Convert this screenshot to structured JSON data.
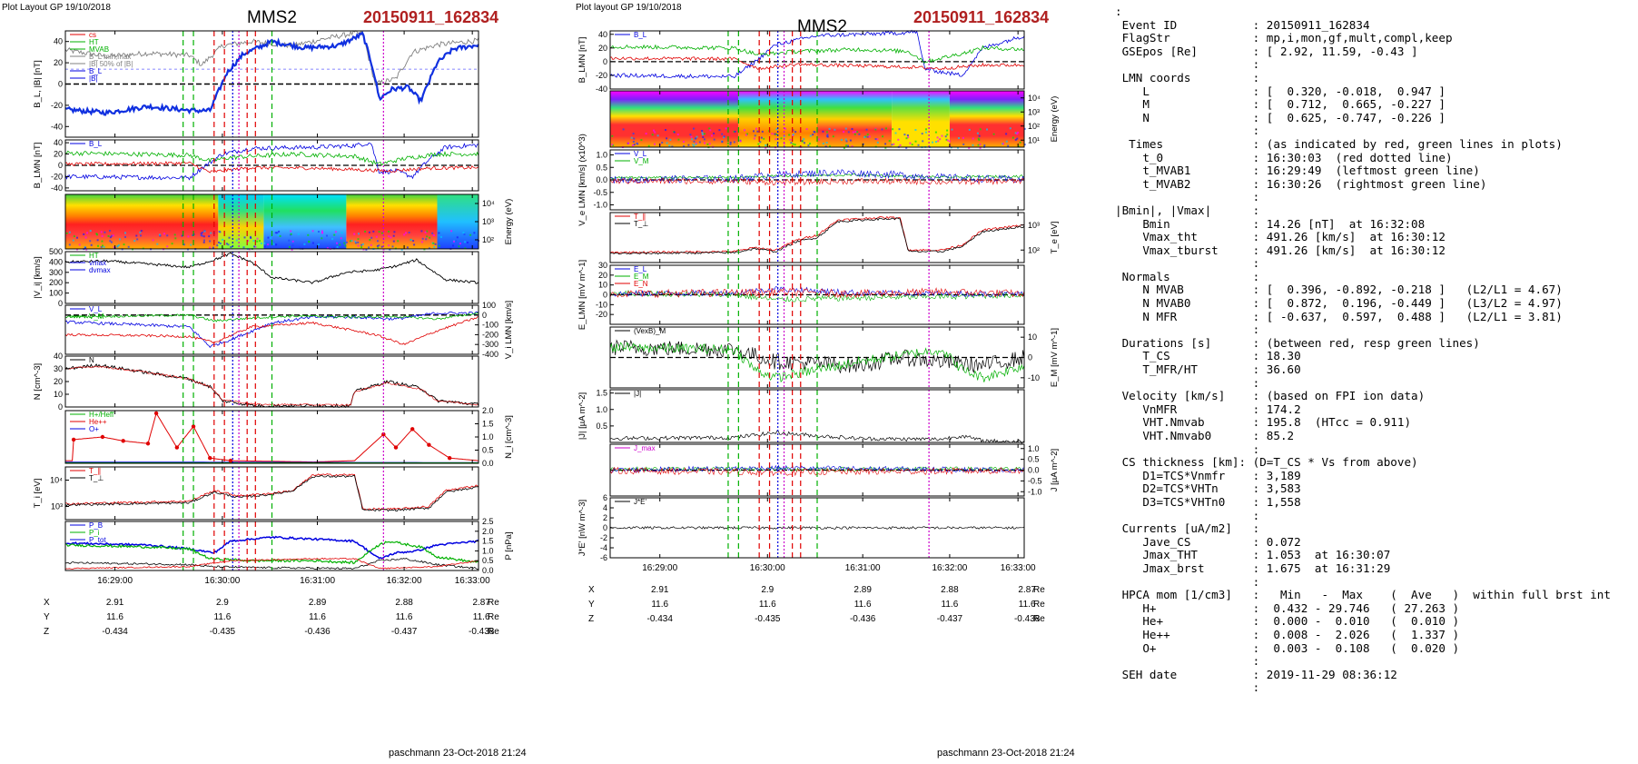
{
  "plot_header": {
    "left_tag": "Plot Layout GP 19/10/2018",
    "middle_tag": "Plot layout GP 19/10/2018",
    "spacecraft": "MMS2",
    "event": "20150911_162834",
    "footer": "paschmann 23-Oct-2018 21:24"
  },
  "time_axis": {
    "ticks": [
      "16:29:00",
      "16:30:00",
      "16:31:00",
      "16:32:00",
      "16:33:00"
    ],
    "coords": {
      "labels": [
        "X",
        "Y",
        "Z"
      ],
      "unit": "Re",
      "rows": [
        [
          "2.91",
          "2.9",
          "2.89",
          "2.88",
          "2.87"
        ],
        [
          "11.6",
          "11.6",
          "11.6",
          "11.6",
          "11.6"
        ],
        [
          "-0.434",
          "-0.435",
          "-0.436",
          "-0.437",
          "-0.438"
        ]
      ]
    }
  },
  "colors": {
    "red": "#e00000",
    "green": "#00b000",
    "blue": "#0000e0",
    "black": "#000000",
    "magenta": "#cc00cc",
    "gray": "#808080",
    "thick_blue": "#1030e0"
  },
  "chart_data": [
    {
      "type": "line",
      "panel": "left-1",
      "ylabel": "B_L, |B| [nT]",
      "ylim": [
        -50,
        50
      ],
      "yticks": [
        "40",
        "20",
        "0",
        "-20",
        "-40"
      ],
      "legend": [
        "cs",
        "HT",
        "MVAB",
        "B_L min,max",
        "|B| 50% of |B|",
        "B_L",
        "|B|"
      ]
    },
    {
      "type": "line",
      "panel": "left-2",
      "ylabel": "B_LMN [nT]",
      "ylim": [
        -45,
        45
      ],
      "yticks": [
        "40",
        "20",
        "0",
        "-20",
        "-40"
      ],
      "legend": [
        "B_L"
      ]
    },
    {
      "type": "heatmap",
      "panel": "left-3",
      "ylabel": "Energy (eV)",
      "yticks": [
        "10^4",
        "10^3",
        "10^2"
      ]
    },
    {
      "type": "line",
      "panel": "left-4",
      "ylabel": "|V_i| [km/s]",
      "ylim": [
        0,
        500
      ],
      "yticks": [
        "500",
        "400",
        "300",
        "200",
        "100",
        "0"
      ],
      "legend": [
        "HT",
        "vmax",
        "dvmax"
      ]
    },
    {
      "type": "line",
      "panel": "left-5",
      "ylabel": "V_i LMN [km/s]",
      "ylim": [
        -400,
        100
      ],
      "yticks": [
        "100",
        "0",
        "-100",
        "-200",
        "-300",
        "-400"
      ],
      "legend": [
        "V_L",
        "V_M"
      ]
    },
    {
      "type": "line",
      "panel": "left-6",
      "ylabel": "N [cm^-3]",
      "ylim": [
        0,
        40
      ],
      "yticks": [
        "40",
        "30",
        "20",
        "10",
        "0"
      ],
      "legend": [
        "N"
      ]
    },
    {
      "type": "line",
      "panel": "left-7",
      "ylabel": "N_i [cm^-3]",
      "ylim": [
        0,
        2.0
      ],
      "yticks": [
        "2.0",
        "1.5",
        "1.0",
        "0.5",
        "0.0"
      ],
      "legend": [
        "H+/Heff",
        "He++",
        "O+"
      ]
    },
    {
      "type": "line",
      "panel": "left-8",
      "ylabel": "T_i [eV]",
      "yticks": [
        "10^4",
        "10^3"
      ],
      "legend": [
        "T_∥",
        "T_⊥"
      ]
    },
    {
      "type": "line",
      "panel": "left-9",
      "ylabel": "P [nPa]",
      "ylim": [
        0,
        2.5
      ],
      "yticks": [
        "2.5",
        "2.0",
        "1.5",
        "1.0",
        "0.5",
        "0.0"
      ],
      "legend": [
        "P_B",
        "P_i",
        "P_tot"
      ]
    },
    {
      "type": "line",
      "panel": "mid-1",
      "ylabel": "B_LMN [nT]",
      "ylim": [
        -40,
        45
      ],
      "yticks": [
        "40",
        "20",
        "0",
        "-20",
        "-40"
      ],
      "legend": [
        "B_L"
      ]
    },
    {
      "type": "heatmap",
      "panel": "mid-2",
      "ylabel": "Energy (eV)",
      "yticks": [
        "10^4",
        "10^3",
        "10^2",
        "10^1"
      ]
    },
    {
      "type": "line",
      "panel": "mid-3",
      "ylabel": "V_e LMN [km/s] (x10^3)",
      "ylim": [
        -1.2,
        1.2
      ],
      "yticks": [
        "1.0",
        "0.5",
        "0.0",
        "-0.5",
        "-1.0"
      ],
      "legend": [
        "V_L",
        "V_M"
      ]
    },
    {
      "type": "line",
      "panel": "mid-4",
      "ylabel": "T_e [eV]",
      "yticks": [
        "10^3",
        "10^2"
      ],
      "legend": [
        "T_∥",
        "T_⊥"
      ]
    },
    {
      "type": "line",
      "panel": "mid-5",
      "ylabel": "E_LMN [mV m^-1]",
      "ylim": [
        -30,
        30
      ],
      "yticks": [
        "30",
        "20",
        "10",
        "0",
        "-10",
        "-20"
      ],
      "legend": [
        "E_L",
        "E_M",
        "E_N"
      ]
    },
    {
      "type": "line",
      "panel": "mid-6",
      "ylabel": "E_M [mV m^-1]",
      "ylim": [
        -15,
        15
      ],
      "yticks": [
        "10",
        "0",
        "-10"
      ],
      "legend": [
        "(VexB)_M"
      ]
    },
    {
      "type": "line",
      "panel": "mid-7",
      "ylabel": "|J| [µA m^-2]",
      "ylim": [
        0,
        1.6
      ],
      "yticks": [
        "1.5",
        "1.0",
        "0.5"
      ],
      "legend": [
        "|J|"
      ]
    },
    {
      "type": "line",
      "panel": "mid-8",
      "ylabel": "J [µA m^-2]",
      "ylim": [
        -1.2,
        1.2
      ],
      "yticks": [
        "1.0",
        "0.5",
        "0.0",
        "-0.5",
        "-1.0"
      ],
      "legend": [
        "J_max"
      ]
    },
    {
      "type": "line",
      "panel": "mid-9",
      "ylabel": "J*E' [nW m^-3]",
      "ylim": [
        -6,
        6
      ],
      "yticks": [
        "6",
        "4",
        "2",
        "0",
        "-2",
        "-4",
        "-6"
      ],
      "legend": [
        "J*E'"
      ]
    }
  ],
  "info_lines": [
    ":",
    " Event ID           : 20150911_162834",
    " FlagStr            : mp,i,mon,gf,mult,compl,keep",
    " GSEpos [Re]        : [ 2.92, 11.59, -0.43 ]",
    "                    :",
    " LMN coords         :",
    "    L               : [  0.320, -0.018,  0.947 ]",
    "    M               : [  0.712,  0.665, -0.227 ]",
    "    N               : [  0.625, -0.747, -0.226 ]",
    "                    :",
    "  Times             : (as indicated by red, green lines in plots)",
    "    t_0             : 16:30:03  (red dotted line)",
    "    t_MVAB1         : 16:29:49  (leftmost green line)",
    "    t_MVAB2         : 16:30:26  (rightmost green line)",
    "                    :",
    "|Bmin|, |Vmax|      :",
    "    Bmin            : 14.26 [nT]  at 16:32:08",
    "    Vmax_tht        : 491.26 [km/s]  at 16:30:12",
    "    Vmax_tburst     : 491.26 [km/s]  at 16:30:12",
    "                    :",
    " Normals            :",
    "    N MVAB          : [  0.396, -0.892, -0.218 ]   (L2/L1 = 4.67)",
    "    N MVAB0         : [  0.872,  0.196, -0.449 ]   (L3/L2 = 4.97)",
    "    N MFR           : [ -0.637,  0.597,  0.488 ]   (L2/L1 = 3.81)",
    "                    :",
    " Durations [s]      : (between red, resp green lines)",
    "    T_CS            : 18.30",
    "    T_MFR/HT        : 36.60",
    "                    :",
    " Velocity [km/s]    : (based on FPI ion data)",
    "    VnMFR           : 174.2",
    "    VHT.Nmvab       : 195.8  (HTcc = 0.911)",
    "    VHT.Nmvab0      : 85.2",
    "                    :",
    " CS thickness [km]: (D=T_CS * Vs from above)",
    "    D1=TCS*Vnmfr    : 3,189",
    "    D2=TCS*VHTn     : 3,583",
    "    D3=TCS*VHTn0    : 1,558",
    "                    :",
    " Currents [uA/m2]   :",
    "    Jave_CS         : 0.072",
    "    Jmax_THT        : 1.053  at 16:30:07",
    "    Jmax_brst       : 1.675  at 16:31:29",
    "                    :",
    " HPCA mom [1/cm3]   :   Min   -  Max    (  Ave   )  within full brst int",
    "    H+              :  0.432 - 29.746   ( 27.263 )",
    "    He+             :  0.000 -  0.010   (  0.010 )",
    "    He++            :  0.008 -  2.026   (  1.337 )",
    "    O+              :  0.003 -  0.108   (  0.020 )",
    "                    :",
    " SEH date           : 2019-11-29 08:36:12",
    "                    :"
  ]
}
